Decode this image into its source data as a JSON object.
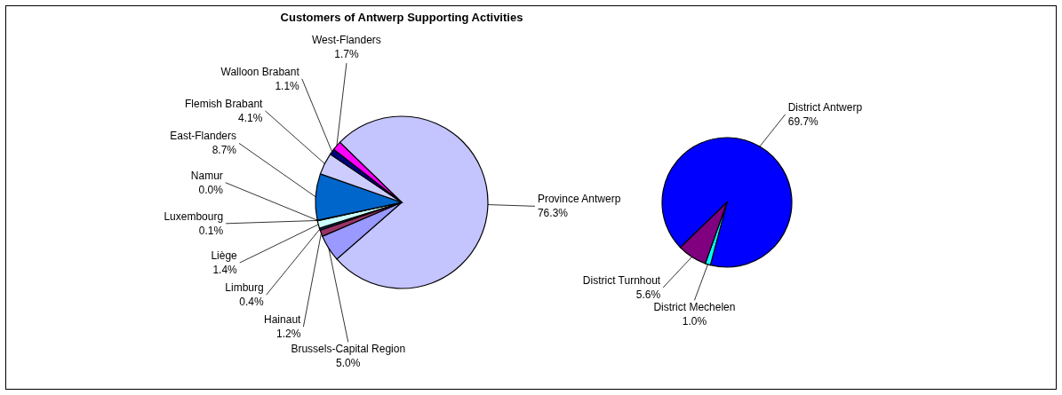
{
  "chart_data": [
    {
      "type": "pie",
      "title": "Customers of Antwerp Supporting Activities",
      "categories": [
        "Province Antwerp",
        "Brussels-Capital Region",
        "Hainaut",
        "Limburg",
        "Liège",
        "Luxembourg",
        "Namur",
        "East-Flanders",
        "Flemish Brabant",
        "Walloon Brabant",
        "West-Flanders"
      ],
      "values": [
        76.3,
        5.0,
        1.2,
        0.4,
        1.4,
        0.1,
        0.0,
        8.7,
        4.1,
        1.1,
        1.7
      ],
      "value_labels": [
        "76.3%",
        "5.0%",
        "1.2%",
        "0.4%",
        "1.4%",
        "0.1%",
        "0.0%",
        "8.7%",
        "4.1%",
        "1.1%",
        "1.7%"
      ],
      "colors": [
        "#c4c4ff",
        "#9999ff",
        "#993366",
        "#003366",
        "#ccffff",
        "#660066",
        "#ff8080",
        "#0066cc",
        "#ccccff",
        "#000080",
        "#ff00ff"
      ]
    },
    {
      "type": "pie",
      "categories": [
        "District Antwerp",
        "District Mechelen",
        "District Turnhout"
      ],
      "values": [
        69.7,
        1.0,
        5.6
      ],
      "value_labels": [
        "69.7%",
        "1.0%",
        "5.6%"
      ],
      "colors": [
        "#0000ff",
        "#00ffff",
        "#800080"
      ]
    }
  ]
}
